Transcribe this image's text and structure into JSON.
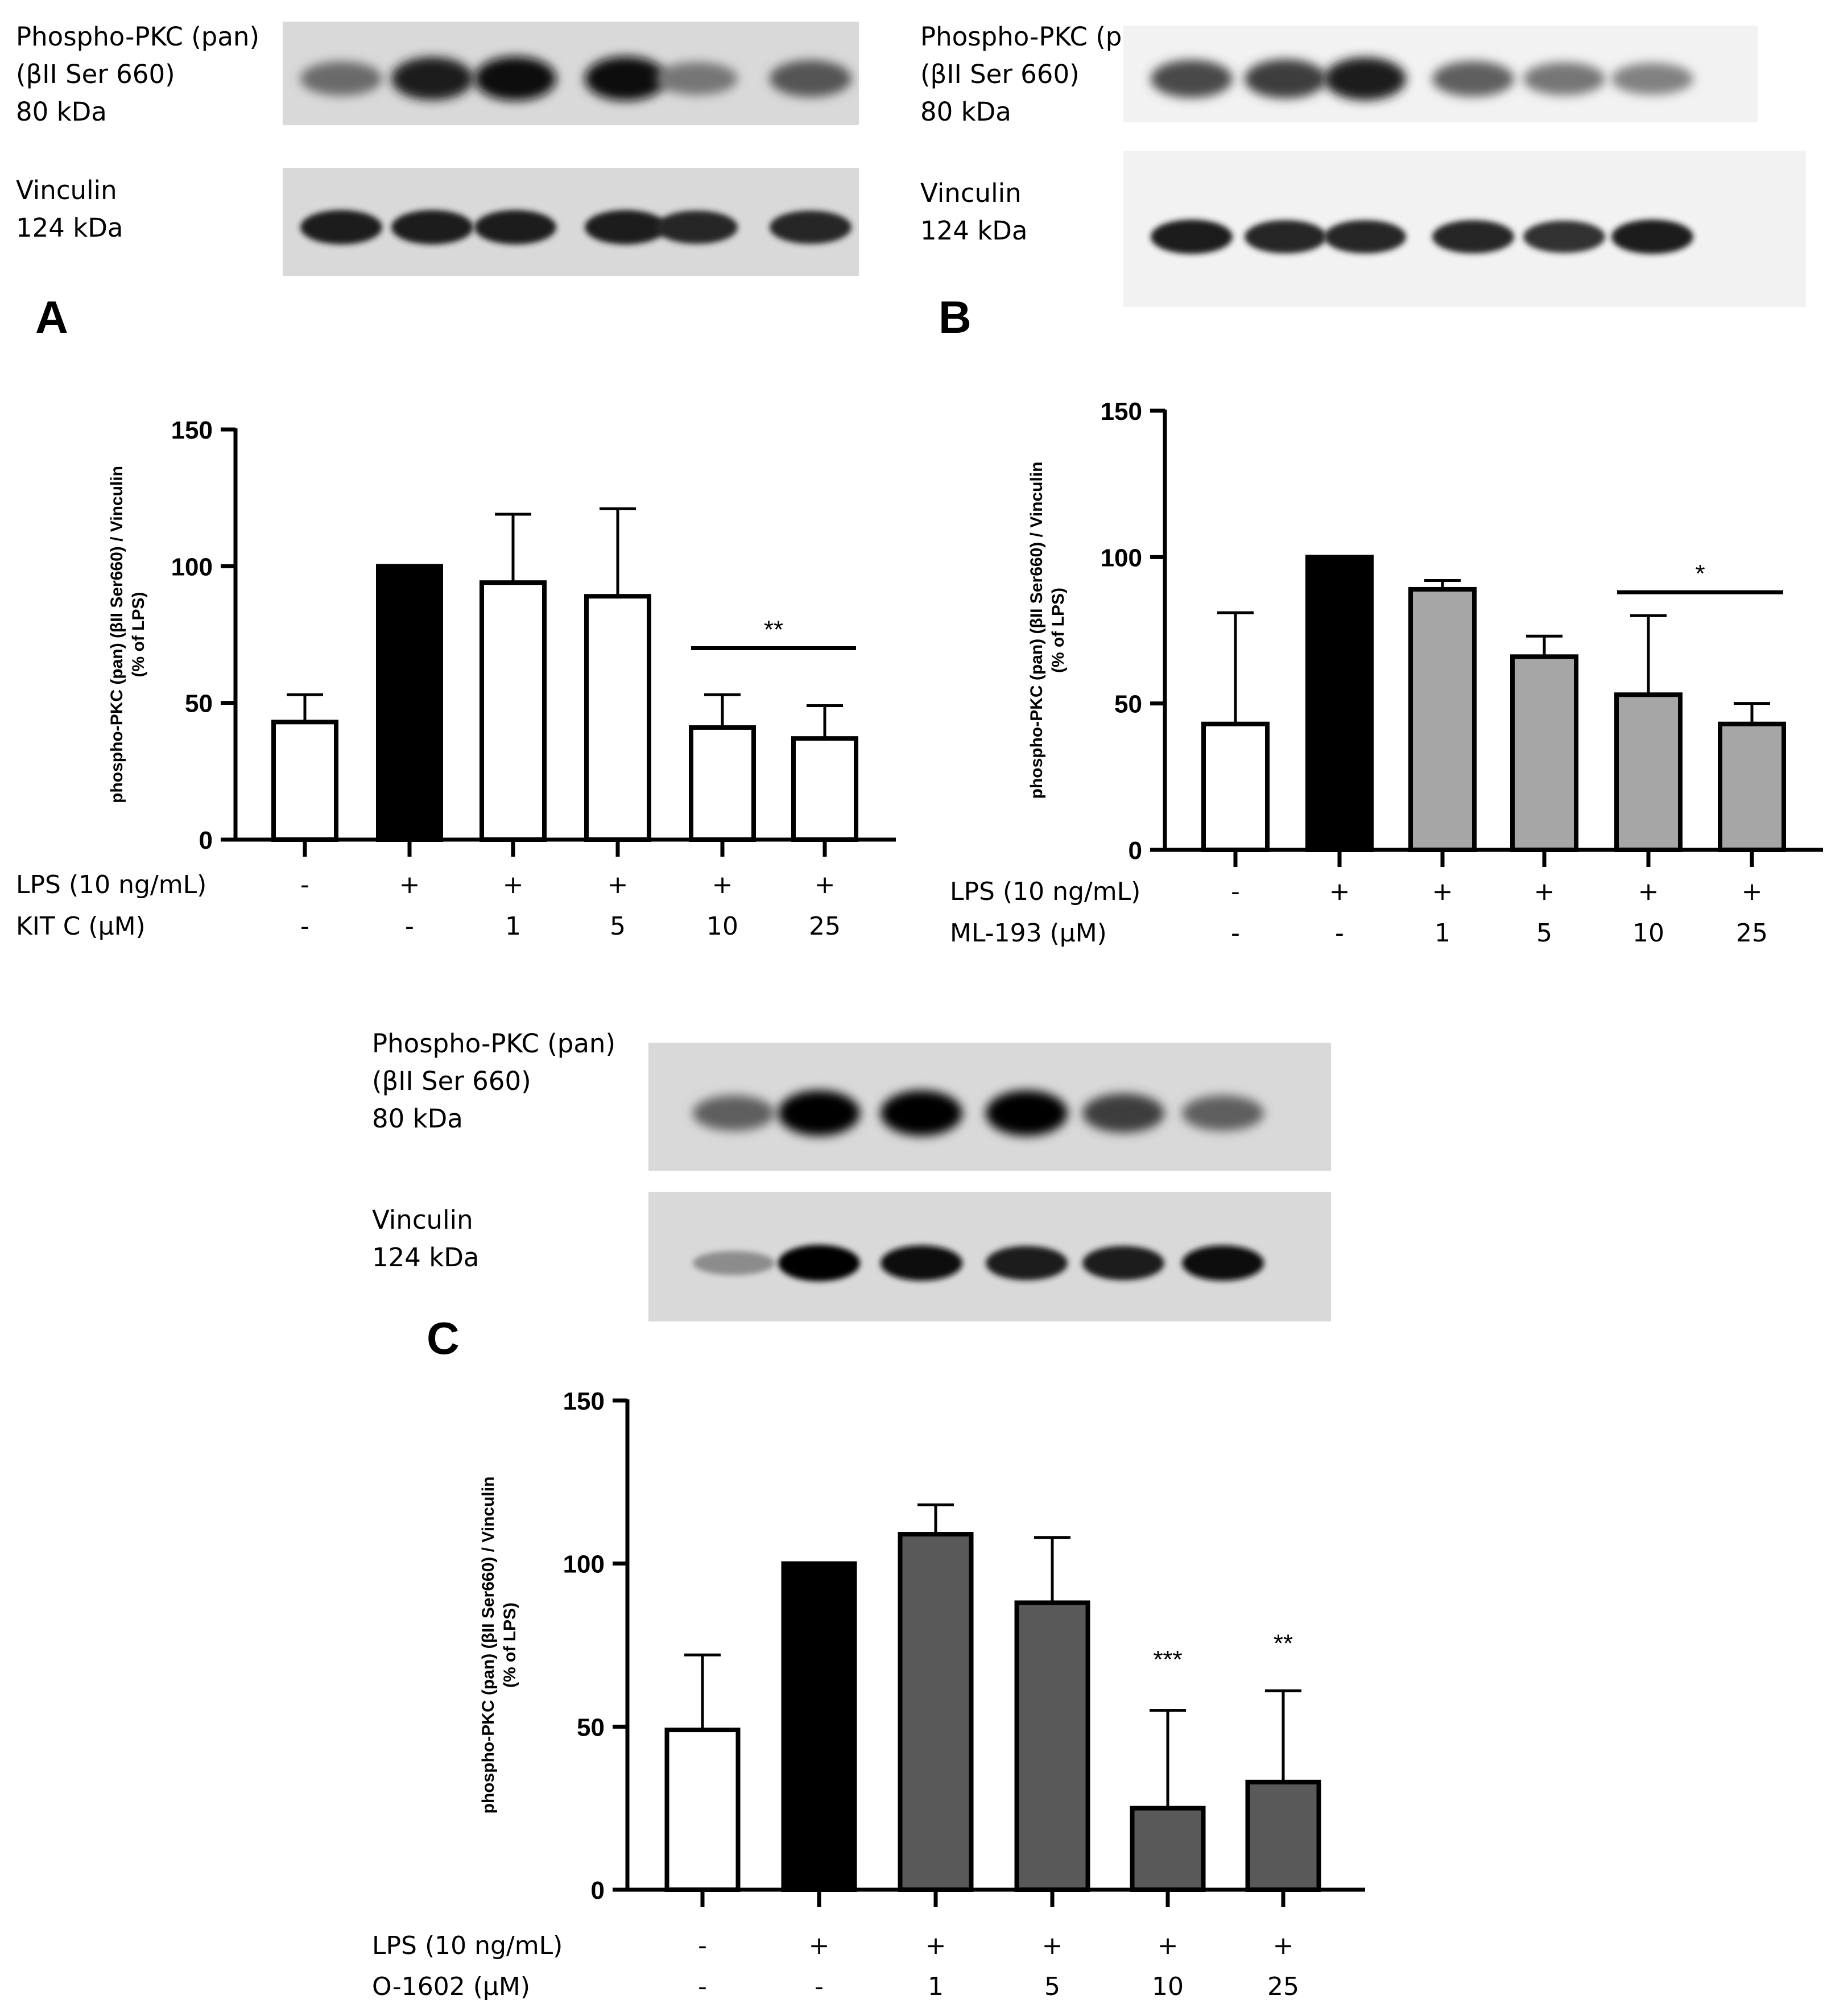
{
  "blots": [
    {
      "id": "A",
      "top_label": [
        "Phospho-PKC (pan)",
        "(βII Ser 660)",
        "80 kDa"
      ],
      "bottom_label": [
        "Vinculin",
        "124 kDa"
      ],
      "style": "dark",
      "top_intensity": [
        0.55,
        0.9,
        0.95,
        0.95,
        0.5,
        0.65
      ],
      "bottom_intensity": [
        0.9,
        0.9,
        0.9,
        0.9,
        0.85,
        0.85
      ]
    },
    {
      "id": "B",
      "top_label": [
        "Phospho-PKC (pan)",
        "(βII Ser 660)",
        "80 kDa"
      ],
      "bottom_label": [
        "Vinculin",
        "124 kDa"
      ],
      "style": "light",
      "top_intensity": [
        0.7,
        0.75,
        0.9,
        0.6,
        0.5,
        0.45
      ],
      "bottom_intensity": [
        0.9,
        0.85,
        0.85,
        0.85,
        0.8,
        0.9
      ]
    },
    {
      "id": "C",
      "top_label": [
        "Phospho-PKC (pan)",
        "(βII Ser 660)",
        "80 kDa"
      ],
      "bottom_label": [
        "Vinculin",
        "124 kDa"
      ],
      "style": "dark",
      "top_intensity": [
        0.6,
        1.0,
        1.0,
        1.0,
        0.75,
        0.6
      ],
      "bottom_intensity": [
        0.4,
        1.0,
        0.95,
        0.9,
        0.9,
        0.95
      ]
    }
  ],
  "chart_data": [
    {
      "type": "bar",
      "panel": "A",
      "ylabel_lines": [
        "phospho-PKC (pan) (βII Ser660) / Vinculin",
        "(% of LPS)"
      ],
      "ylim": [
        0,
        150
      ],
      "yticks": [
        0,
        50,
        100,
        150
      ],
      "values": [
        43,
        100,
        94,
        89,
        41,
        37
      ],
      "errors": [
        10,
        0,
        25,
        32,
        12,
        12
      ],
      "bar_colors": [
        "#ffffff",
        "#000000",
        "#ffffff",
        "#ffffff",
        "#ffffff",
        "#ffffff"
      ],
      "condition_rows": [
        {
          "label": "LPS (10 ng/mL)",
          "cells": [
            "-",
            "+",
            "+",
            "+",
            "+",
            "+"
          ]
        },
        {
          "label": "KIT C (μM)",
          "cells": [
            "-",
            "-",
            "1",
            "5",
            "10",
            "25"
          ]
        }
      ],
      "significance": [
        {
          "text": "**",
          "from": 4,
          "to": 5,
          "line": true,
          "y": 70
        }
      ]
    },
    {
      "type": "bar",
      "panel": "B",
      "ylabel_lines": [
        "phospho-PKC  (pan) (βII Ser660) / Vinculin",
        "(% of LPS)"
      ],
      "ylim": [
        0,
        150
      ],
      "yticks": [
        0,
        50,
        100,
        150
      ],
      "values": [
        43,
        100,
        89,
        66,
        53,
        43
      ],
      "errors": [
        38,
        0,
        3,
        7,
        27,
        7
      ],
      "bar_colors": [
        "#ffffff",
        "#000000",
        "#a6a6a6",
        "#a6a6a6",
        "#a6a6a6",
        "#a6a6a6"
      ],
      "condition_rows": [
        {
          "label": "LPS (10 ng/mL)",
          "cells": [
            "-",
            "+",
            "+",
            "+",
            "+",
            "+"
          ]
        },
        {
          "label": "ML-193 (μM)",
          "cells": [
            "-",
            "-",
            "1",
            "5",
            "10",
            "25"
          ]
        }
      ],
      "significance": [
        {
          "text": "*",
          "from": 4,
          "to": 5,
          "line": true,
          "y": 88
        }
      ]
    },
    {
      "type": "bar",
      "panel": "C",
      "ylabel_lines": [
        "phospho-PKC  (pan) (βII Ser660) / Vinculin",
        "(% of LPS)"
      ],
      "ylim": [
        0,
        150
      ],
      "yticks": [
        0,
        50,
        100,
        150
      ],
      "values": [
        49,
        100,
        109,
        88,
        25,
        33
      ],
      "errors": [
        23,
        0,
        9,
        20,
        30,
        28
      ],
      "bar_colors": [
        "#ffffff",
        "#000000",
        "#595959",
        "#595959",
        "#595959",
        "#595959"
      ],
      "condition_rows": [
        {
          "label": "LPS (10 ng/mL)",
          "cells": [
            "-",
            "+",
            "+",
            "+",
            "+",
            "+"
          ]
        },
        {
          "label": "O-1602 (μM)",
          "cells": [
            "-",
            "-",
            "1",
            "5",
            "10",
            "25"
          ]
        }
      ],
      "significance": [
        {
          "text": "***",
          "from": 4,
          "to": 4,
          "line": false,
          "y": 68
        },
        {
          "text": "**",
          "from": 5,
          "to": 5,
          "line": false,
          "y": 73
        }
      ]
    }
  ]
}
